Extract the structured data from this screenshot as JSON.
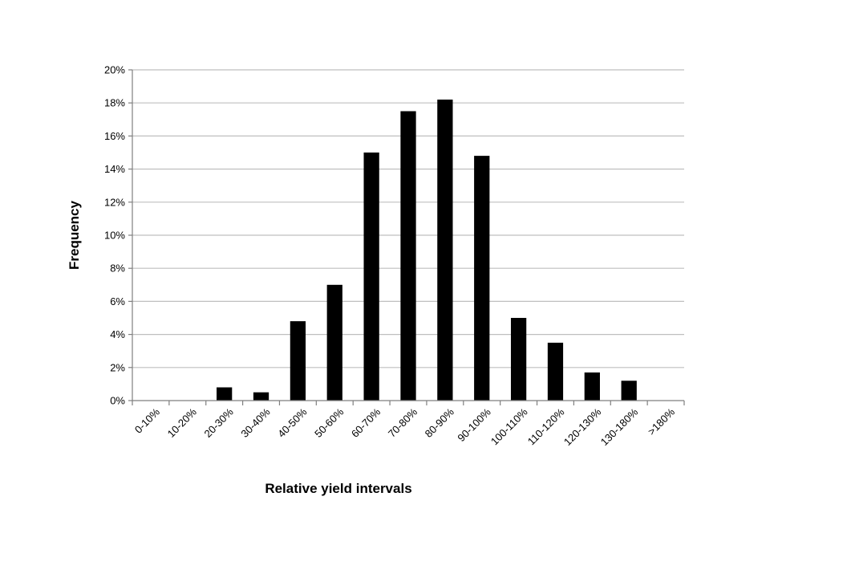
{
  "chart_data": {
    "type": "bar",
    "title": "",
    "xlabel": "Relative yield intervals",
    "ylabel": "Frequency",
    "categories": [
      "0-10%",
      "10-20%",
      "20-30%",
      "30-40%",
      "40-50%",
      "50-60%",
      "60-70%",
      "70-80%",
      "80-90%",
      "90-100%",
      "100-110%",
      "110-120%",
      "120-130%",
      "130-180%",
      ">180%"
    ],
    "values": [
      0,
      0,
      0.8,
      0.5,
      4.8,
      7.0,
      15.0,
      17.5,
      18.2,
      14.8,
      5.0,
      3.5,
      1.7,
      1.2,
      0
    ],
    "ylim": [
      0,
      20
    ],
    "yticks": [
      0,
      2,
      4,
      6,
      8,
      10,
      12,
      14,
      16,
      18,
      20
    ],
    "ytick_labels": [
      "0%",
      "2%",
      "4%",
      "6%",
      "8%",
      "10%",
      "12%",
      "14%",
      "16%",
      "18%",
      "20%"
    ],
    "grid": true,
    "legend": "none",
    "bar_color": "#000000",
    "grid_color": "#bfbfbf",
    "axis_color": "#7f7f7f"
  }
}
